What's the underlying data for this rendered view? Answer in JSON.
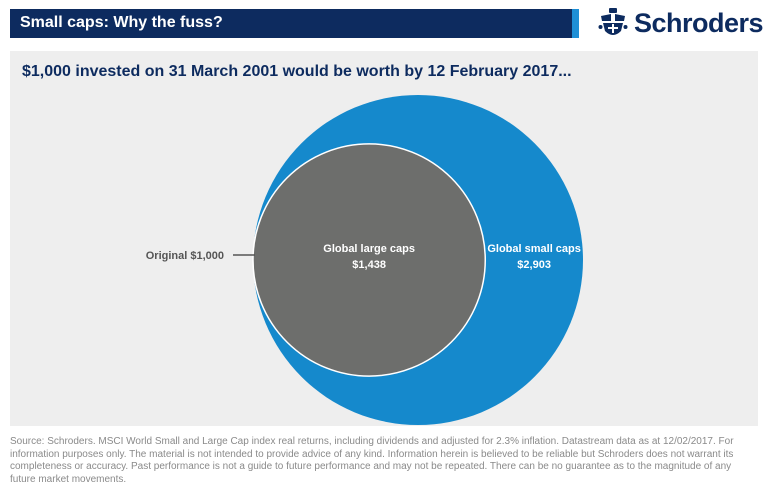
{
  "header": {
    "title": "Small caps: Why the fuss?",
    "brand": "Schroders",
    "logo_icon": "crest-icon"
  },
  "colors": {
    "navy": "#0d2b5f",
    "accent_blue": "#1e8fd6",
    "large_caps_grey": "#6d6e6c",
    "small_caps_blue": "#1589cc",
    "panel_bg": "#eeeeee"
  },
  "chart_data": {
    "type": "bubble",
    "title": "$1,000 invested on 31 March 2001 would be worth by 12 February 2017...",
    "baseline_label": "Original $1,000",
    "baseline_value": 1000,
    "series": [
      {
        "name": "Global small caps",
        "value_label": "$2,903",
        "value": 2903
      },
      {
        "name": "Global large caps",
        "value_label": "$1,438",
        "value": 1438
      }
    ]
  },
  "footer": {
    "source": "Source: Schroders. MSCI World Small and Large Cap index real returns, including dividends and adjusted for 2.3% inflation. Datastream data as at 12/02/2017. For information purposes only. The material is not intended to provide advice of any kind. Information herein is believed to be reliable but Schroders does not warrant its completeness or accuracy. Past performance is not a guide to future performance and may not be repeated. There can be no guarantee as to the magnitude of any future market movements."
  }
}
